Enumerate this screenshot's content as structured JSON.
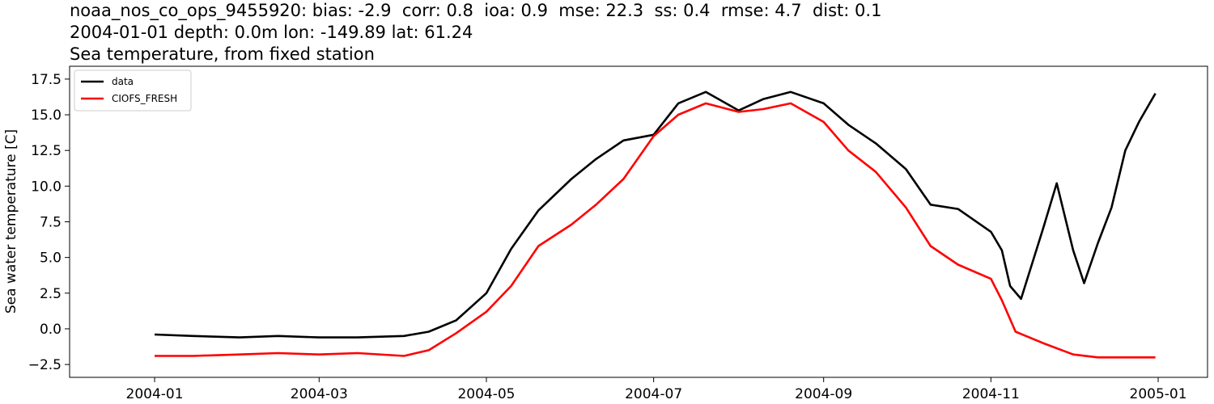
{
  "chart_data": {
    "type": "line",
    "title_lines": [
      "noaa_nos_co_ops_9455920: bias: -2.9  corr: 0.8  ioa: 0.9  mse: 22.3  ss: 0.4  rmse: 4.7  dist: 0.1",
      "2004-01-01 depth: 0.0m lon: -149.89 lat: 61.24",
      "Sea temperature, from fixed station"
    ],
    "xlabel": "",
    "ylabel": "Sea water temperature [C]",
    "xlim": [
      "2003-12-01",
      "2005-01-19"
    ],
    "ylim": [
      -3.4,
      18.4
    ],
    "x_ticks": [
      "2004-01",
      "2004-03",
      "2004-05",
      "2004-07",
      "2004-09",
      "2004-11",
      "2005-01"
    ],
    "y_ticks": [
      -2.5,
      0.0,
      2.5,
      5.0,
      7.5,
      10.0,
      12.5,
      15.0,
      17.5
    ],
    "y_tick_labels": [
      "−2.5",
      "0.0",
      "2.5",
      "5.0",
      "7.5",
      "10.0",
      "12.5",
      "15.0",
      "17.5"
    ],
    "legend_position": "upper-left",
    "series": [
      {
        "name": "data",
        "color": "#000000",
        "x": [
          "2004-01-01",
          "2004-01-15",
          "2004-02-01",
          "2004-02-15",
          "2004-03-01",
          "2004-03-15",
          "2004-04-01",
          "2004-04-10",
          "2004-04-20",
          "2004-05-01",
          "2004-05-10",
          "2004-05-20",
          "2004-06-01",
          "2004-06-10",
          "2004-06-20",
          "2004-07-01",
          "2004-07-10",
          "2004-07-20",
          "2004-08-01",
          "2004-08-10",
          "2004-08-20",
          "2004-09-01",
          "2004-09-10",
          "2004-09-20",
          "2004-10-01",
          "2004-10-10",
          "2004-10-20",
          "2004-11-01",
          "2004-11-05",
          "2004-11-08",
          "2004-11-12",
          "2004-11-20",
          "2004-11-25",
          "2004-12-01",
          "2004-12-05",
          "2004-12-10",
          "2004-12-15",
          "2004-12-20",
          "2004-12-25",
          "2004-12-31"
        ],
        "y": [
          -0.4,
          -0.5,
          -0.6,
          -0.5,
          -0.6,
          -0.6,
          -0.5,
          -0.2,
          0.6,
          2.5,
          5.6,
          8.3,
          10.5,
          11.9,
          13.2,
          13.6,
          15.8,
          16.6,
          15.3,
          16.1,
          16.6,
          15.8,
          14.3,
          13.0,
          11.2,
          8.7,
          8.4,
          6.8,
          5.5,
          3.0,
          2.1,
          7.0,
          10.2,
          5.5,
          3.2,
          6.0,
          8.5,
          12.5,
          14.5,
          16.5
        ]
      },
      {
        "name": "CIOFS_FRESH",
        "color": "#ff0000",
        "x": [
          "2004-01-01",
          "2004-01-15",
          "2004-02-01",
          "2004-02-15",
          "2004-03-01",
          "2004-03-15",
          "2004-04-01",
          "2004-04-10",
          "2004-04-20",
          "2004-05-01",
          "2004-05-10",
          "2004-05-20",
          "2004-06-01",
          "2004-06-10",
          "2004-06-20",
          "2004-07-01",
          "2004-07-10",
          "2004-07-20",
          "2004-08-01",
          "2004-08-10",
          "2004-08-20",
          "2004-09-01",
          "2004-09-10",
          "2004-09-20",
          "2004-10-01",
          "2004-10-10",
          "2004-10-20",
          "2004-11-01",
          "2004-11-05",
          "2004-11-10",
          "2004-11-20",
          "2004-12-01",
          "2004-12-10",
          "2004-12-20",
          "2004-12-31"
        ],
        "y": [
          -1.9,
          -1.9,
          -1.8,
          -1.7,
          -1.8,
          -1.7,
          -1.9,
          -1.5,
          -0.3,
          1.2,
          3.0,
          5.8,
          7.3,
          8.7,
          10.5,
          13.5,
          15.0,
          15.8,
          15.2,
          15.4,
          15.8,
          14.5,
          12.5,
          11.0,
          8.5,
          5.8,
          4.5,
          3.5,
          2.0,
          -0.2,
          -1.0,
          -1.8,
          -2.0,
          -2.0,
          -2.0
        ]
      }
    ]
  }
}
